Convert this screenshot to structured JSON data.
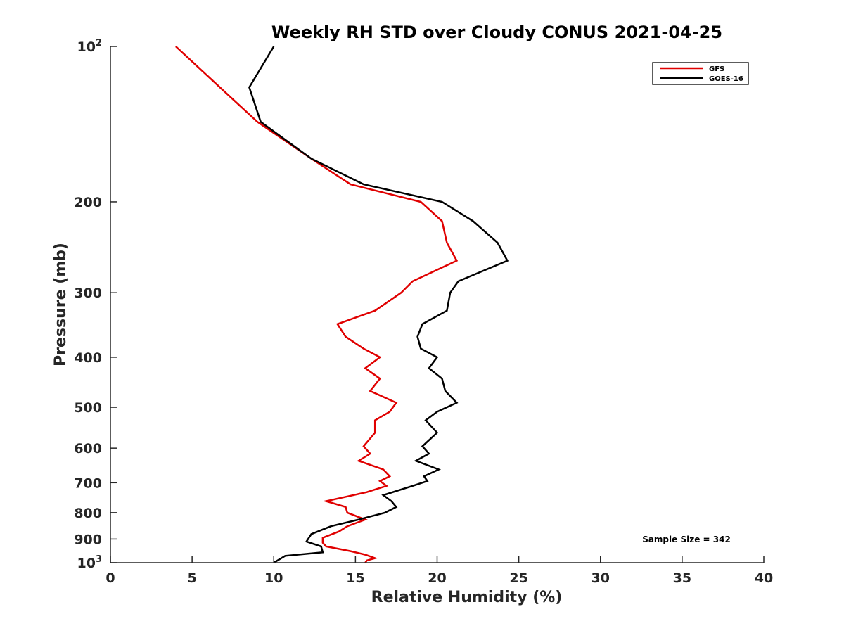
{
  "chart_data": {
    "type": "line",
    "title": "Weekly RH STD over Cloudy CONUS 2021-04-25",
    "xlabel": "Relative Humidity (%)",
    "ylabel": "Pressure (mb)",
    "xlim": [
      0,
      40
    ],
    "ylim": [
      100,
      1000
    ],
    "yscale": "log",
    "y_reversed": true,
    "grid": false,
    "x_ticks": [
      "0",
      "5",
      "10",
      "15",
      "20",
      "25",
      "30",
      "35",
      "40"
    ],
    "y_ticks": [
      {
        "value": 100,
        "base": "10",
        "exp": "2"
      },
      {
        "value": 200,
        "label": "200"
      },
      {
        "value": 300,
        "label": "300"
      },
      {
        "value": 400,
        "label": "400"
      },
      {
        "value": 500,
        "label": "500"
      },
      {
        "value": 600,
        "label": "600"
      },
      {
        "value": 700,
        "label": "700"
      },
      {
        "value": 800,
        "label": "800"
      },
      {
        "value": 900,
        "label": "900"
      },
      {
        "value": 1000,
        "base": "10",
        "exp": "3"
      }
    ],
    "legend": {
      "placement": "top-right"
    },
    "annotation": "Sample Size = 342",
    "series": [
      {
        "name": "GFS",
        "color": "#e00000",
        "points": [
          [
            4.0,
            100
          ],
          [
            6.7,
            120
          ],
          [
            9.0,
            140
          ],
          [
            12.3,
            165
          ],
          [
            14.7,
            185
          ],
          [
            19.0,
            200
          ],
          [
            20.3,
            218
          ],
          [
            20.6,
            240
          ],
          [
            21.2,
            260
          ],
          [
            18.5,
            285
          ],
          [
            17.8,
            300
          ],
          [
            16.2,
            325
          ],
          [
            13.9,
            345
          ],
          [
            14.4,
            365
          ],
          [
            15.5,
            385
          ],
          [
            16.5,
            400
          ],
          [
            15.6,
            420
          ],
          [
            16.5,
            440
          ],
          [
            15.9,
            465
          ],
          [
            17.5,
            490
          ],
          [
            17.1,
            510
          ],
          [
            16.2,
            530
          ],
          [
            16.2,
            560
          ],
          [
            15.5,
            595
          ],
          [
            15.9,
            615
          ],
          [
            15.2,
            635
          ],
          [
            16.7,
            660
          ],
          [
            17.1,
            680
          ],
          [
            16.5,
            695
          ],
          [
            16.9,
            710
          ],
          [
            15.7,
            730
          ],
          [
            13.2,
            760
          ],
          [
            14.4,
            780
          ],
          [
            14.5,
            800
          ],
          [
            15.6,
            825
          ],
          [
            14.5,
            850
          ],
          [
            14.0,
            870
          ],
          [
            13.0,
            895
          ],
          [
            13.0,
            915
          ],
          [
            13.2,
            930
          ],
          [
            14.7,
            950
          ],
          [
            15.6,
            965
          ],
          [
            16.2,
            980
          ],
          [
            15.7,
            990
          ],
          [
            15.6,
            1000
          ]
        ]
      },
      {
        "name": "GOES-16",
        "color": "#000000",
        "points": [
          [
            10.0,
            100
          ],
          [
            8.5,
            120
          ],
          [
            9.2,
            140
          ],
          [
            12.3,
            165
          ],
          [
            15.5,
            185
          ],
          [
            20.3,
            200
          ],
          [
            22.2,
            218
          ],
          [
            23.7,
            240
          ],
          [
            24.3,
            260
          ],
          [
            21.3,
            285
          ],
          [
            20.8,
            300
          ],
          [
            20.6,
            325
          ],
          [
            19.1,
            345
          ],
          [
            18.8,
            365
          ],
          [
            19.0,
            385
          ],
          [
            20.0,
            400
          ],
          [
            19.5,
            420
          ],
          [
            20.3,
            440
          ],
          [
            20.5,
            465
          ],
          [
            21.2,
            490
          ],
          [
            20.0,
            510
          ],
          [
            19.3,
            530
          ],
          [
            20.0,
            560
          ],
          [
            19.1,
            595
          ],
          [
            19.5,
            615
          ],
          [
            18.7,
            635
          ],
          [
            20.1,
            660
          ],
          [
            19.2,
            680
          ],
          [
            19.4,
            695
          ],
          [
            18.5,
            710
          ],
          [
            16.7,
            740
          ],
          [
            17.2,
            760
          ],
          [
            17.5,
            780
          ],
          [
            16.8,
            800
          ],
          [
            15.2,
            825
          ],
          [
            13.5,
            850
          ],
          [
            12.3,
            880
          ],
          [
            12.0,
            910
          ],
          [
            12.9,
            930
          ],
          [
            13.0,
            955
          ],
          [
            10.7,
            970
          ],
          [
            10.0,
            1000
          ]
        ]
      }
    ]
  }
}
